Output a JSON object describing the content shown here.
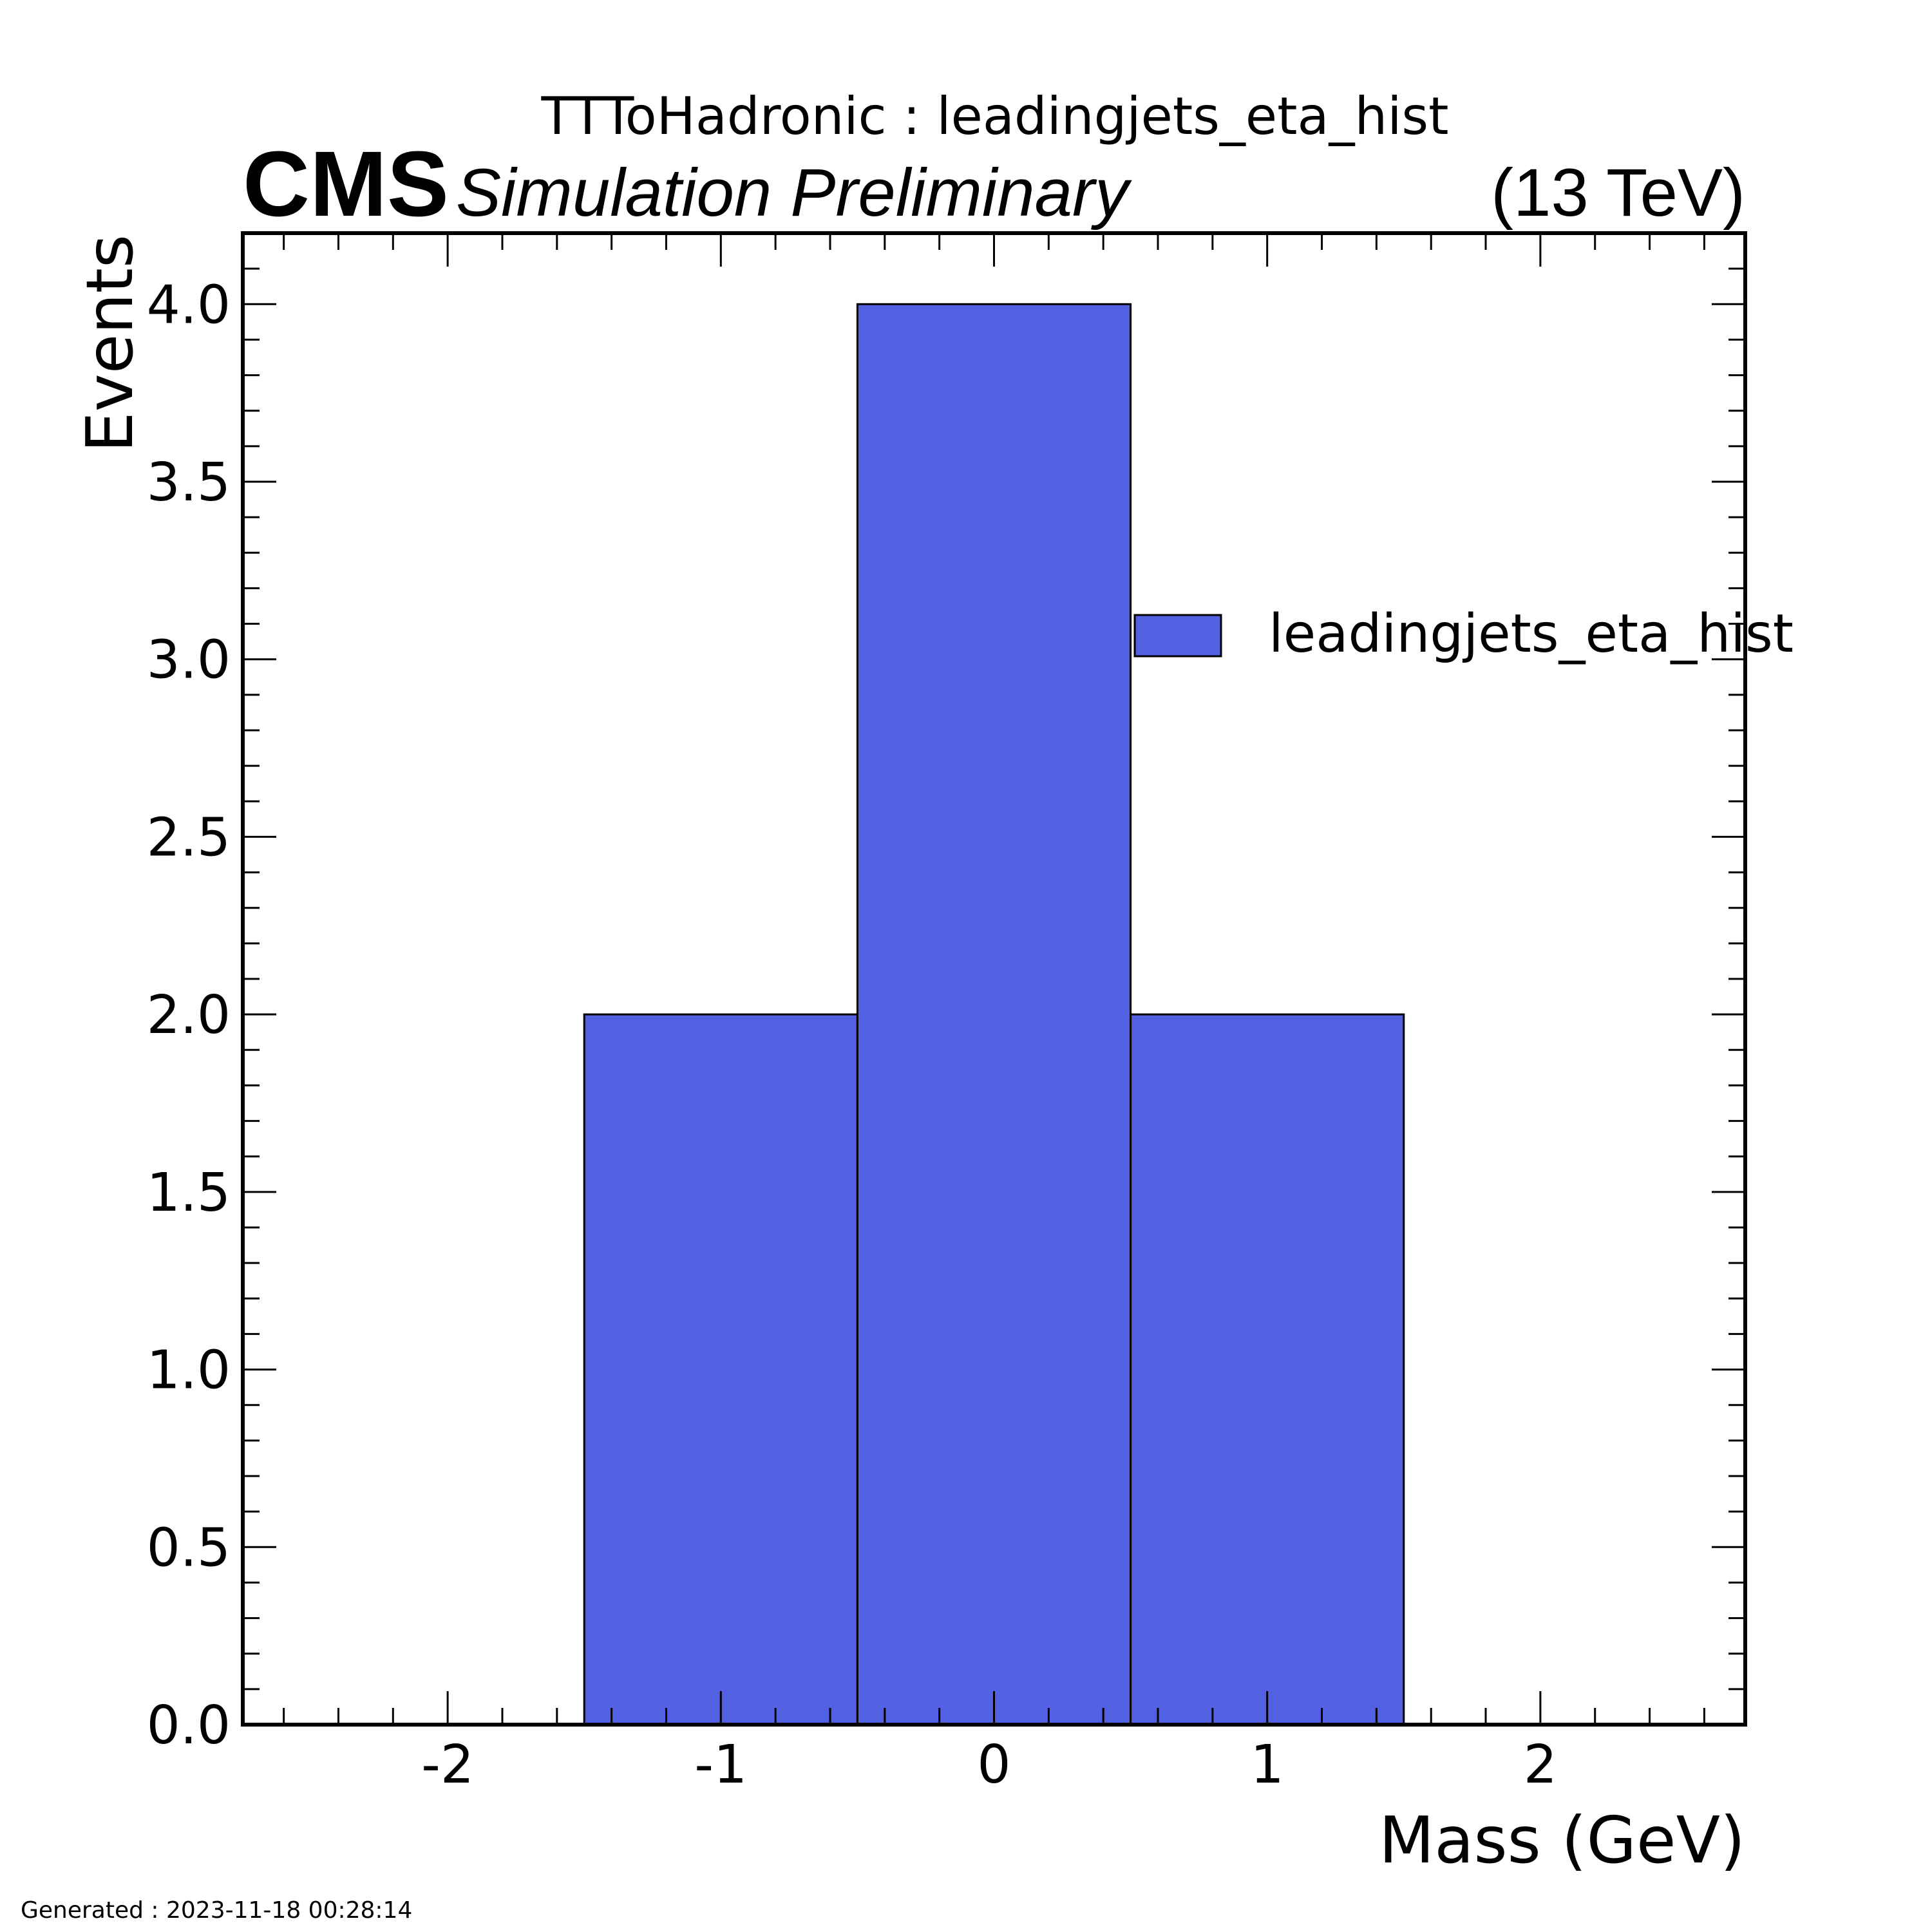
{
  "header": {
    "title": "TTToHadronic : leadingjets_eta_hist",
    "experiment": "CMS",
    "status": "Simulation Preliminary",
    "energy": "(13 TeV)"
  },
  "footer": {
    "generated": "Generated : 2023-11-18 00:28:14"
  },
  "colors": {
    "fill": "#5260e2",
    "edge": "#000000",
    "frame": "#000000"
  },
  "chart_data": {
    "type": "bar",
    "style": "step-filled histogram",
    "xlabel": "Mass (GeV)",
    "ylabel": "Events",
    "xlim": [
      -2.75,
      2.75
    ],
    "ylim": [
      0,
      4.2
    ],
    "bin_edges": [
      -1.5,
      -0.5,
      0.5,
      1.5
    ],
    "values": [
      2,
      4,
      2
    ],
    "x_ticks": [
      -2,
      -1,
      0,
      1,
      2
    ],
    "x_tick_labels": [
      "-2",
      "-1",
      "0",
      "1",
      "2"
    ],
    "x_minor_step": 0.2,
    "y_ticks": [
      0,
      0.5,
      1,
      1.5,
      2,
      2.5,
      3,
      3.5,
      4
    ],
    "y_tick_labels": [
      "0.0",
      "0.5",
      "1.0",
      "1.5",
      "2.0",
      "2.5",
      "3.0",
      "3.5",
      "4.0"
    ],
    "y_minor_step": 0.1,
    "series": [
      {
        "name": "leadingjets_eta_hist"
      }
    ],
    "legend_position": "upper right",
    "grid": false
  }
}
